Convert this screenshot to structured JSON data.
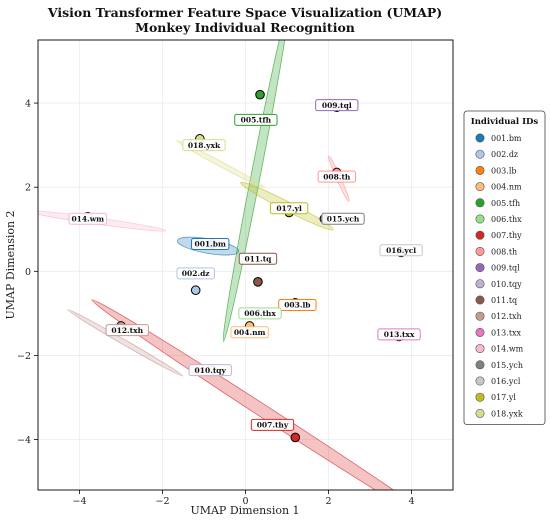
{
  "chart_data": {
    "type": "scatter",
    "title": "Vision Transformer Feature Space Visualization (UMAP)",
    "subtitle": "Monkey Individual Recognition",
    "xlabel": "UMAP Dimension 1",
    "ylabel": "UMAP Dimension 2",
    "xlim": [
      -5.0,
      5.0
    ],
    "ylim": [
      -5.2,
      5.5
    ],
    "xticks": [
      -4,
      -2,
      0,
      2,
      4
    ],
    "yticks": [
      -4,
      -2,
      0,
      2,
      4
    ],
    "grid": true,
    "legend_title": "Individual IDs",
    "legend_position": "right",
    "series": [
      {
        "name": "001.bm",
        "color": "#1f77b4",
        "x": -0.8,
        "y": 0.65,
        "ex": -0.9,
        "ey": 0.6,
        "ang": -10,
        "len": 1.5,
        "wid": 0.35
      },
      {
        "name": "002.dz",
        "color": "#aec7e8",
        "x": -1.2,
        "y": -0.45,
        "ex": -1.2,
        "ey": -0.25,
        "ang": 0,
        "len": 0.2,
        "wid": 0.1
      },
      {
        "name": "003.lb",
        "color": "#ff7f0e",
        "x": 1.2,
        "y": -0.75,
        "ex": 1.25,
        "ey": -0.8,
        "ang": 0,
        "len": 0.2,
        "wid": 0.1
      },
      {
        "name": "004.nm",
        "color": "#ffbb78",
        "x": 0.1,
        "y": -1.3,
        "ex": 0.1,
        "ey": -1.3,
        "ang": 0,
        "len": 0.2,
        "wid": 0.1
      },
      {
        "name": "005.tfh",
        "color": "#2ca02c",
        "x": 0.35,
        "y": 4.2,
        "ex": 0.25,
        "ey": 2.3,
        "ang": 79,
        "len": 8.2,
        "wid": 0.22
      },
      {
        "name": "006.thx",
        "color": "#98df8a",
        "x": 0.35,
        "y": -1.0,
        "ex": 0.35,
        "ey": -1.0,
        "ang": 0,
        "len": 0.2,
        "wid": 0.1
      },
      {
        "name": "007.thy",
        "color": "#d62728",
        "x": 1.2,
        "y": -3.95,
        "ex": 0.7,
        "ey": -3.5,
        "ang": -33,
        "len": 10.5,
        "wid": 0.3
      },
      {
        "name": "008.th",
        "color": "#ff9896",
        "x": 2.2,
        "y": 2.35,
        "ex": 2.25,
        "ey": 2.2,
        "ang": -66,
        "len": 1.2,
        "wid": 0.1
      },
      {
        "name": "009.tql",
        "color": "#9467bd",
        "x": 2.2,
        "y": 3.9,
        "ex": 2.2,
        "ey": 3.9,
        "ang": 0,
        "len": 0.2,
        "wid": 0.1
      },
      {
        "name": "010.tqy",
        "color": "#c5b0d5",
        "x": -0.8,
        "y": -2.35,
        "ex": -0.8,
        "ey": -2.35,
        "ang": 0,
        "len": 0.2,
        "wid": 0.1
      },
      {
        "name": "011.tq",
        "color": "#8c564b",
        "x": 0.3,
        "y": -0.25,
        "ex": 0.3,
        "ey": -0.25,
        "ang": 0,
        "len": 0.2,
        "wid": 0.1
      },
      {
        "name": "012.txh",
        "color": "#c49c94",
        "x": -3.0,
        "y": -1.3,
        "ex": -2.9,
        "ey": -1.7,
        "ang": -30,
        "len": 3.2,
        "wid": 0.12
      },
      {
        "name": "013.txx",
        "color": "#e377c2",
        "x": 3.7,
        "y": -1.55,
        "ex": 3.7,
        "ey": -1.55,
        "ang": 0,
        "len": 0.2,
        "wid": 0.1
      },
      {
        "name": "014.wm",
        "color": "#f7b6d2",
        "x": -3.8,
        "y": 1.3,
        "ex": -3.6,
        "ey": 1.2,
        "ang": -8,
        "len": 3.4,
        "wid": 0.15
      },
      {
        "name": "015.ych",
        "color": "#7f7f7f",
        "x": 1.9,
        "y": 1.25,
        "ex": 1.9,
        "ey": 1.25,
        "ang": 0,
        "len": 0.2,
        "wid": 0.1
      },
      {
        "name": "016.ycl",
        "color": "#c7c7c7",
        "x": 3.75,
        "y": 0.45,
        "ex": 3.75,
        "ey": 0.45,
        "ang": 0,
        "len": 0.2,
        "wid": 0.1
      },
      {
        "name": "017.yl",
        "color": "#bcbd22",
        "x": 1.05,
        "y": 1.4,
        "ex": 1.0,
        "ey": 1.55,
        "ang": -27,
        "len": 2.5,
        "wid": 0.22
      },
      {
        "name": "018.yxk",
        "color": "#dbdb8d",
        "x": -1.1,
        "y": 3.15,
        "ex": -0.6,
        "ey": 2.55,
        "ang": -28,
        "len": 2.4,
        "wid": 0.12
      }
    ],
    "labels": [
      {
        "text": "001.bm",
        "x": -0.85,
        "y": 0.65,
        "series": 0
      },
      {
        "text": "002.dz",
        "x": -1.2,
        "y": -0.05,
        "series": 1
      },
      {
        "text": "003.lb",
        "x": 1.25,
        "y": -0.8,
        "series": 2
      },
      {
        "text": "004.nm",
        "x": 0.1,
        "y": -1.45,
        "series": 3
      },
      {
        "text": "005.tfh",
        "x": 0.25,
        "y": 3.6,
        "series": 4
      },
      {
        "text": "006.thx",
        "x": 0.35,
        "y": -1.0,
        "series": 5
      },
      {
        "text": "007.thy",
        "x": 0.65,
        "y": -3.65,
        "series": 6
      },
      {
        "text": "008.th",
        "x": 2.2,
        "y": 2.25,
        "series": 7
      },
      {
        "text": "009.tql",
        "x": 2.2,
        "y": 3.95,
        "series": 8
      },
      {
        "text": "010.tqy",
        "x": -0.85,
        "y": -2.35,
        "series": 9
      },
      {
        "text": "011.tq",
        "x": 0.3,
        "y": 0.3,
        "series": 10
      },
      {
        "text": "012.txh",
        "x": -2.85,
        "y": -1.4,
        "series": 11
      },
      {
        "text": "013.txx",
        "x": 3.7,
        "y": -1.5,
        "series": 12
      },
      {
        "text": "014.wm",
        "x": -3.8,
        "y": 1.25,
        "series": 13
      },
      {
        "text": "015.ych",
        "x": 2.35,
        "y": 1.25,
        "series": 14
      },
      {
        "text": "016.ycl",
        "x": 3.75,
        "y": 0.5,
        "series": 15
      },
      {
        "text": "017.yl",
        "x": 1.05,
        "y": 1.5,
        "series": 16
      },
      {
        "text": "018.yxk",
        "x": -1.0,
        "y": 3.0,
        "series": 17
      }
    ]
  }
}
